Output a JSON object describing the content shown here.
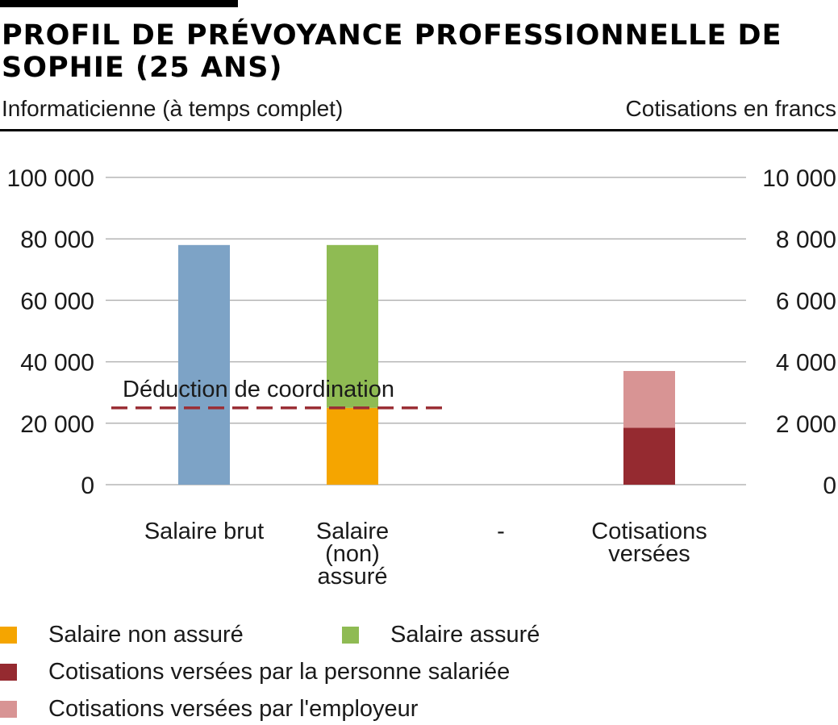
{
  "header": {
    "title": "PROFIL DE PRÉVOYANCE PROFESSIONNELLE DE SOPHIE (25 ANS)",
    "subtitle": "Informaticienne (à temps complet)",
    "unit": "Cotisations en francs"
  },
  "colors": {
    "salaire_brut": "#7da3c6",
    "salaire_assure": "#8fbb53",
    "salaire_non_assure": "#f5a500",
    "cotisations_salariee": "#952a30",
    "cotisations_employeur": "#d89494",
    "coordination_line": "#9b2f36",
    "grid": "#b5b5b5"
  },
  "chart_data": {
    "type": "bar",
    "stacked": true,
    "categories": [
      "Salaire brut",
      "Salaire (non) assuré",
      "-",
      "Cotisations versées"
    ],
    "category_lines": [
      [
        "Salaire brut"
      ],
      [
        "Salaire",
        "(non)",
        "assuré"
      ],
      [
        "-"
      ],
      [
        "Cotisations",
        "versées"
      ]
    ],
    "left_axis": {
      "ylim": [
        0,
        100000
      ],
      "ticks": [
        0,
        20000,
        40000,
        60000,
        80000,
        100000
      ],
      "tick_labels": [
        "0",
        "20 000",
        "40 000",
        "60 000",
        "80 000",
        "100 000"
      ]
    },
    "right_axis": {
      "ylim": [
        0,
        10000
      ],
      "ticks": [
        0,
        2000,
        4000,
        6000,
        8000,
        10000
      ],
      "tick_labels": [
        "0",
        "2 000",
        "4 000",
        "6 000",
        "8 000",
        "10 000"
      ]
    },
    "grid": true,
    "series": [
      {
        "key": "salaire_brut",
        "axis": "left",
        "values": [
          78000,
          null,
          null,
          null
        ]
      },
      {
        "key": "salaire_non_assure",
        "name": "Salaire non assuré",
        "axis": "left",
        "values": [
          null,
          25000,
          null,
          null
        ]
      },
      {
        "key": "salaire_assure",
        "name": "Salaire assuré",
        "axis": "left",
        "values": [
          null,
          53000,
          null,
          null
        ]
      },
      {
        "key": "cotisations_salariee",
        "name": "Cotisations versées par la personne salariée",
        "axis": "right",
        "values": [
          null,
          null,
          null,
          1850
        ]
      },
      {
        "key": "cotisations_employeur",
        "name": "Cotisations versées par l'employeur",
        "axis": "right",
        "values": [
          null,
          null,
          null,
          1850
        ]
      }
    ],
    "reference_line": {
      "label": "Déduction de coordination",
      "value": 25000,
      "axis": "left",
      "style": "dashed",
      "span": "first two categories"
    }
  },
  "legend": {
    "placement": "bottom",
    "items": [
      {
        "label": "Salaire non assuré",
        "color_key": "salaire_non_assure"
      },
      {
        "label": "Salaire assuré",
        "color_key": "salaire_assure"
      },
      {
        "label": "Cotisations versées par la personne salariée",
        "color_key": "cotisations_salariee"
      },
      {
        "label": "Cotisations versées par l'employeur",
        "color_key": "cotisations_employeur"
      }
    ]
  }
}
